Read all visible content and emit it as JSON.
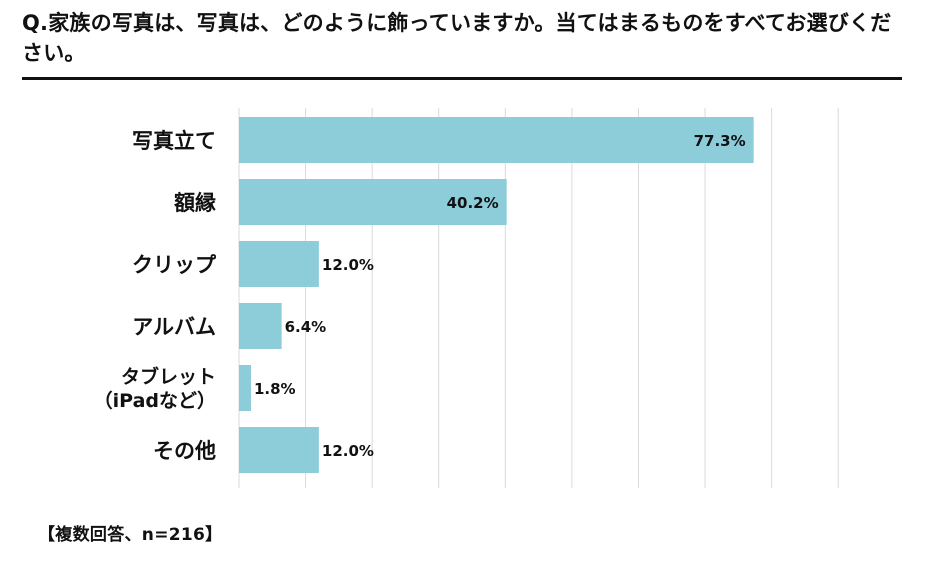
{
  "title": "Q.家族の写真は、写真は、どのように飾っていますか。当てはまるものをすべてお選びください。",
  "footnote": "【複数回答、n=216】",
  "colors": {
    "bar": "#8ccdd9",
    "grid": "#d9d9d9",
    "text": "#111111"
  },
  "chart_data": {
    "type": "bar",
    "orientation": "horizontal",
    "categories": [
      "写真立て",
      "額縁",
      "クリップ",
      "アルバム",
      "タブレット\n（iPadなど）",
      "その他"
    ],
    "values": [
      77.3,
      40.2,
      12.0,
      6.4,
      1.8,
      12.0
    ],
    "value_labels": [
      "77.3%",
      "40.2%",
      "12.0%",
      "6.4%",
      "1.8%",
      "12.0%"
    ],
    "xlim": [
      0,
      90
    ],
    "grid": true,
    "legend": "none"
  }
}
